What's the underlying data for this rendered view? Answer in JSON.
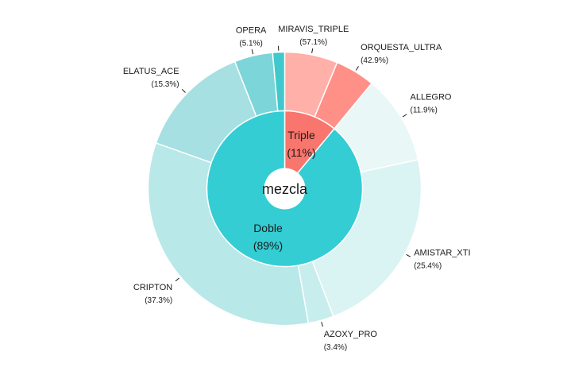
{
  "chart_data": {
    "type": "pie",
    "center_label": "mezcla",
    "inner_ring": [
      {
        "name": "Triple",
        "percent_label": "(11%)",
        "value": 11,
        "color": "#f8766d"
      },
      {
        "name": "Doble",
        "percent_label": "(89%)",
        "value": 89,
        "color": "#33cdd3"
      }
    ],
    "outer_ring": [
      {
        "name": "MIRAVIS_TRIPLE",
        "percent_label": "(57.1%)",
        "group": "Triple",
        "value": 6.28,
        "color": "#ffb0a8"
      },
      {
        "name": "ORQUESTA_ULTRA",
        "percent_label": "(42.9%)",
        "group": "Triple",
        "value": 4.72,
        "color": "#ff9088"
      },
      {
        "name": "ALLEGRO",
        "percent_label": "(11.9%)",
        "group": "Doble",
        "value": 10.59,
        "color": "#eaf7f7"
      },
      {
        "name": "AMISTAR_XTI",
        "percent_label": "(25.4%)",
        "group": "Doble",
        "value": 22.61,
        "color": "#daf3f3"
      },
      {
        "name": "AZOXY_PRO",
        "percent_label": "(3.4%)",
        "group": "Doble",
        "value": 3.03,
        "color": "#c8eded"
      },
      {
        "name": "CRIPTON",
        "percent_label": "(37.3%)",
        "group": "Doble",
        "value": 33.2,
        "color": "#b8e8e8"
      },
      {
        "name": "ELATUS_ACE",
        "percent_label": "(15.3%)",
        "group": "Doble",
        "value": 13.62,
        "color": "#a6e0e2"
      },
      {
        "name": "OPERA",
        "percent_label": "(5.1%)",
        "group": "Doble",
        "value": 4.54,
        "color": "#7cd5d8"
      },
      {
        "name": "",
        "percent_label": "",
        "group": "Doble",
        "value": 1.41,
        "color": "#40c8cd"
      }
    ]
  }
}
